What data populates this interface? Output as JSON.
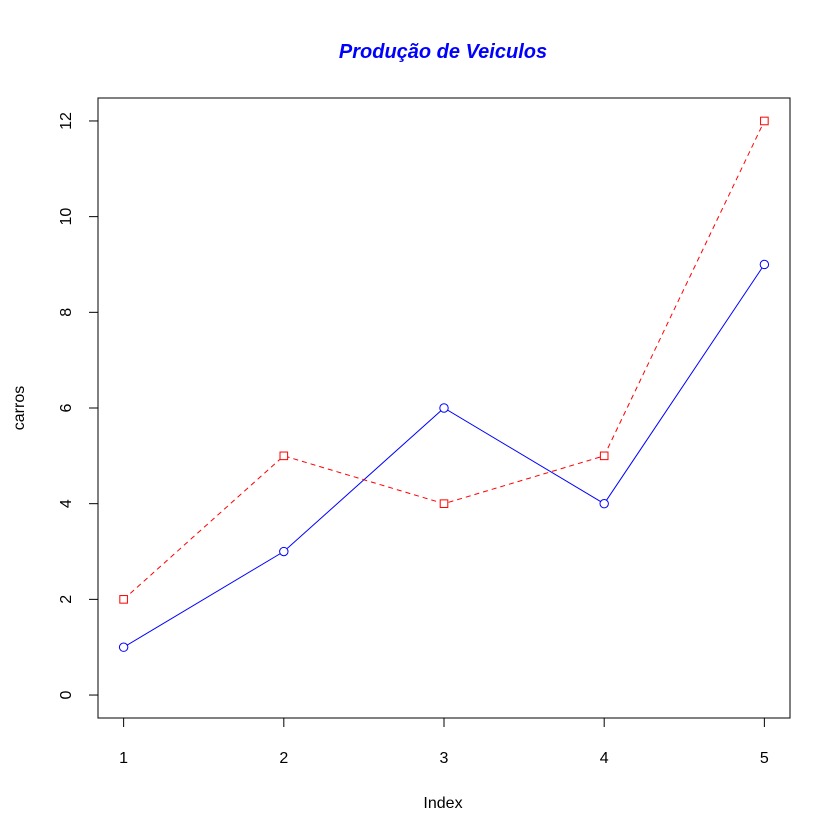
{
  "chart_data": {
    "type": "line",
    "title": "Produção de Veiculos",
    "title_color": "#0000ff",
    "xlabel": "Index",
    "ylabel": "carros",
    "x": [
      1,
      2,
      3,
      4,
      5
    ],
    "xlim": [
      0.84,
      5.16
    ],
    "ylim": [
      -0.48,
      12.48
    ],
    "xticks": [
      "1",
      "2",
      "3",
      "4",
      "5"
    ],
    "yticks": [
      "0",
      "2",
      "4",
      "6",
      "8",
      "10",
      "12"
    ],
    "grid": false,
    "legend": "none",
    "series": [
      {
        "values": [
          1,
          3,
          6,
          4,
          9
        ],
        "color": "#0000ff",
        "line": "solid",
        "marker": "circle"
      },
      {
        "values": [
          2,
          5,
          4,
          5,
          12
        ],
        "color": "#ff0000",
        "line": "dashed",
        "marker": "square"
      }
    ]
  }
}
